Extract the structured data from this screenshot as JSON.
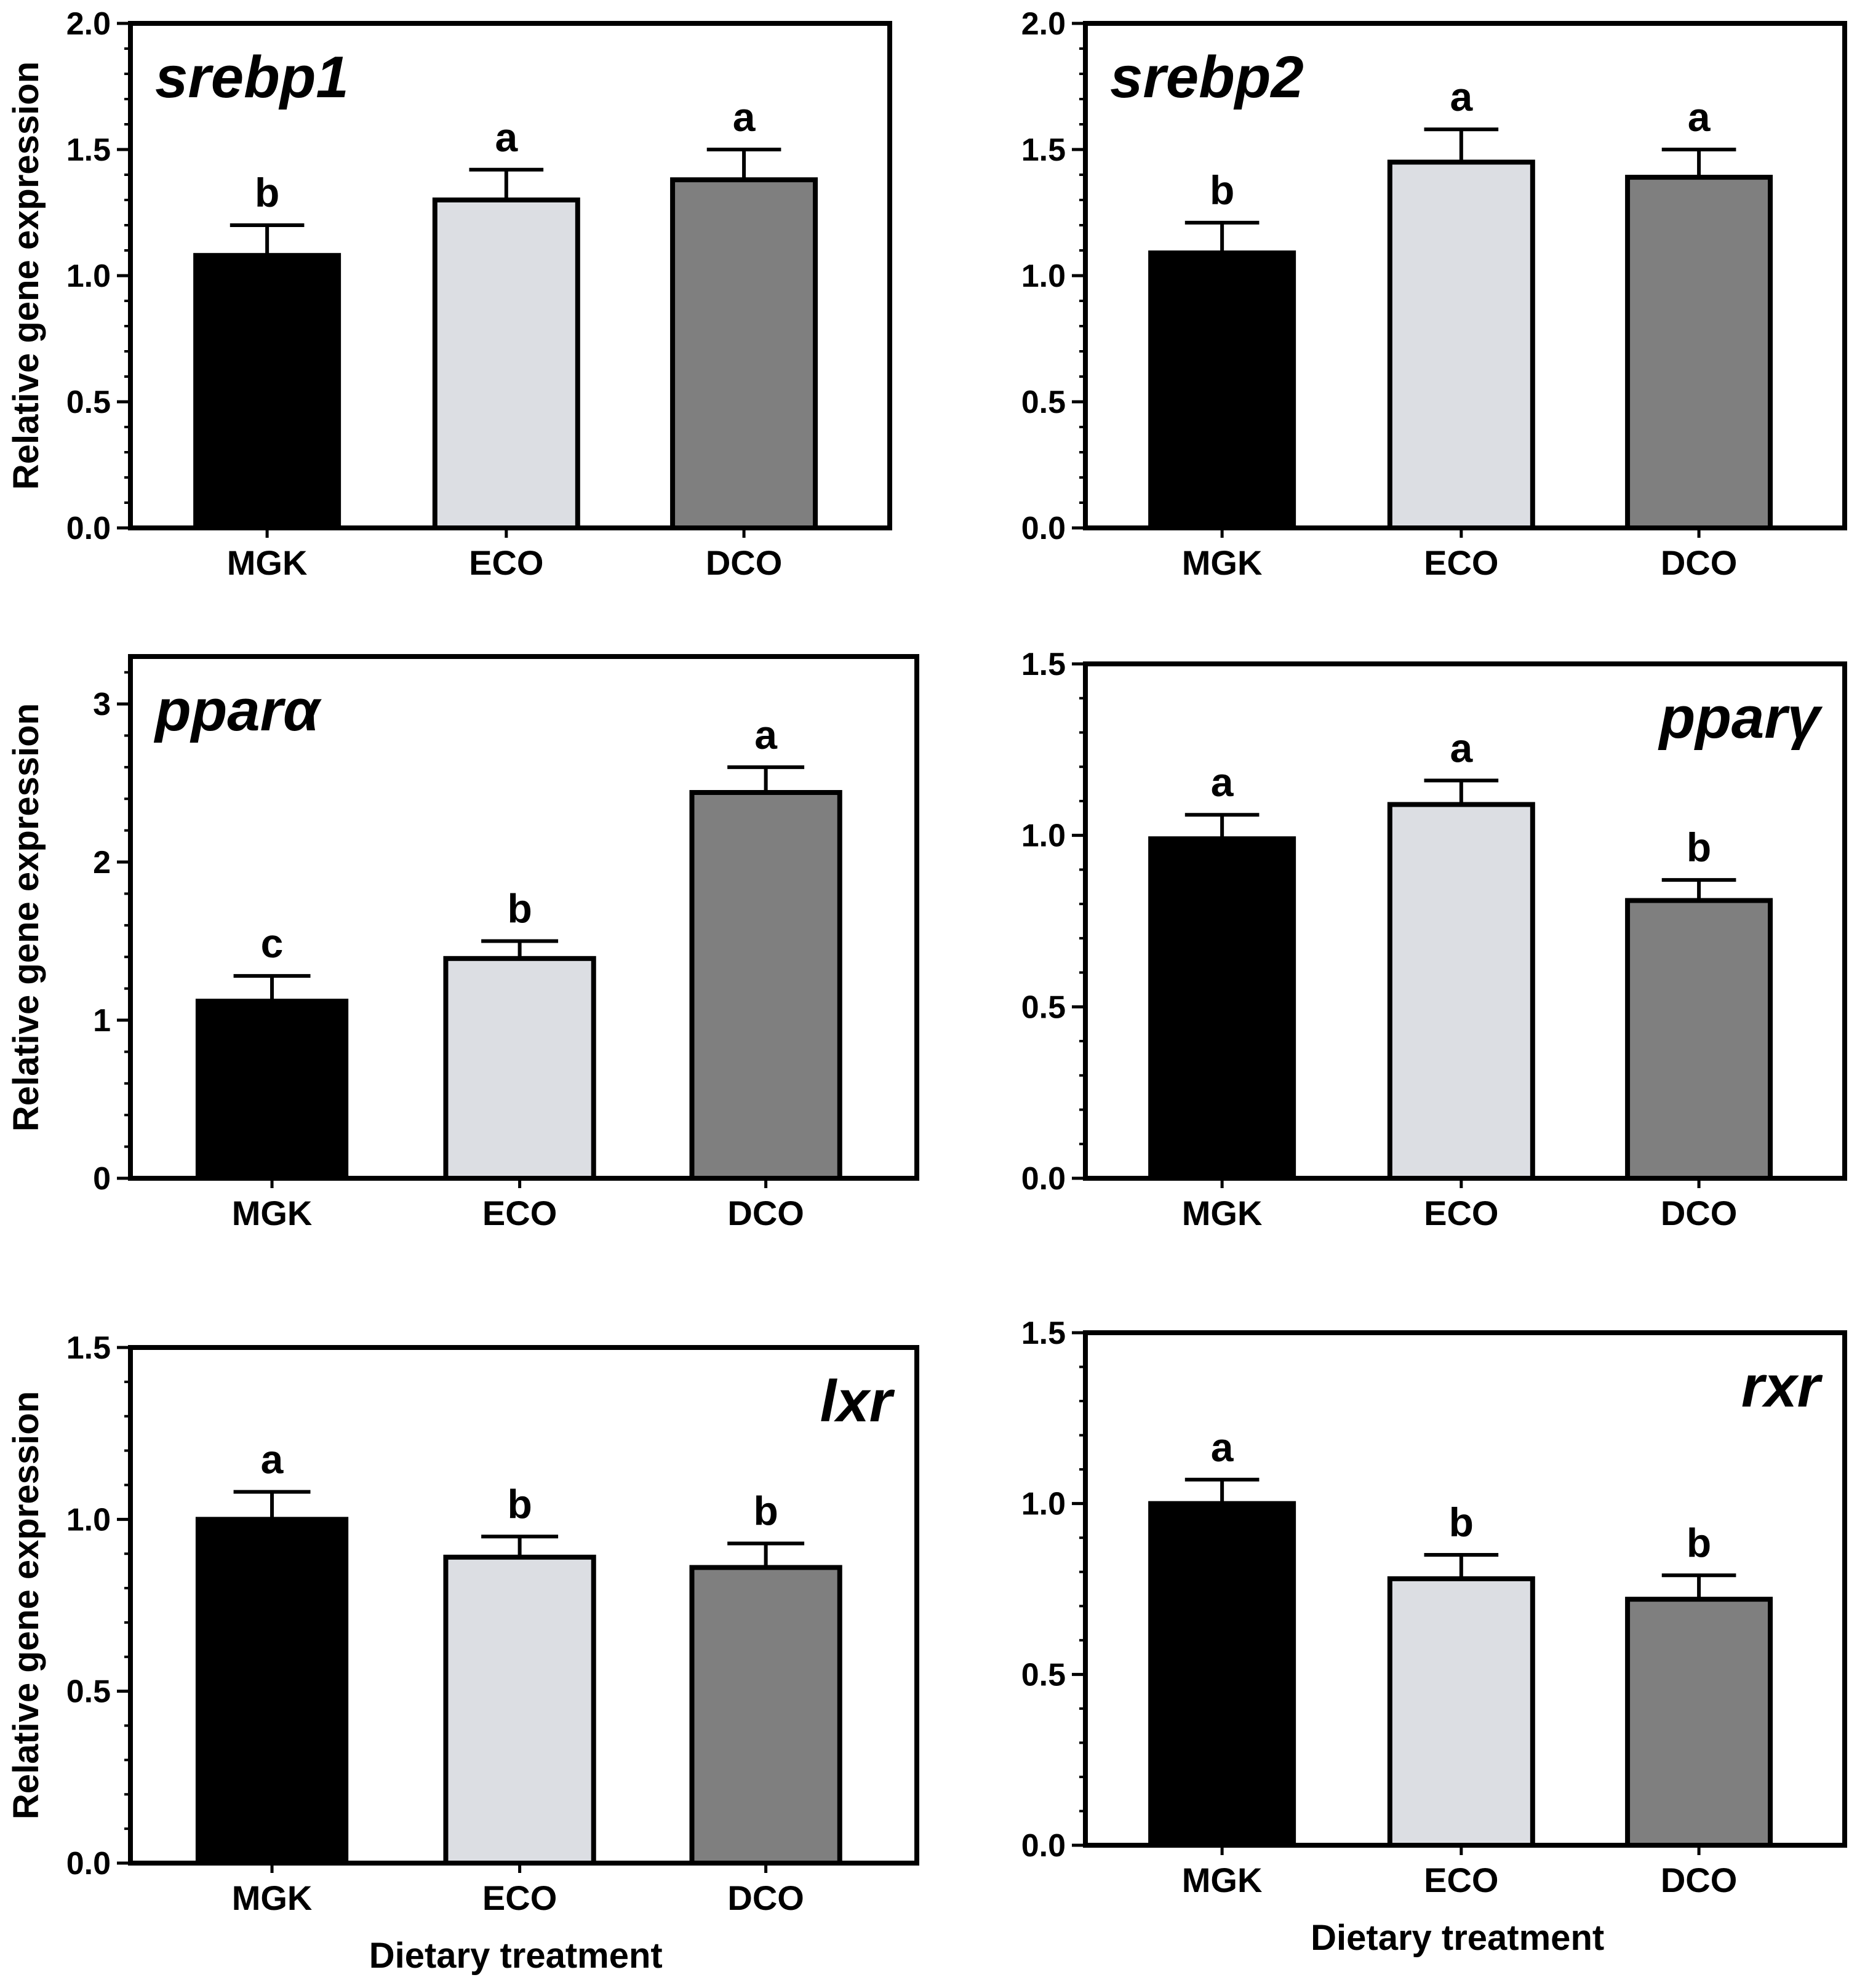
{
  "chart_data": [
    {
      "type": "bar",
      "title": "srebp1",
      "title_position": "top-left",
      "categories": [
        "MGK",
        "ECO",
        "DCO"
      ],
      "values": [
        1.08,
        1.3,
        1.38
      ],
      "errors": [
        0.12,
        0.12,
        0.12
      ],
      "significance": [
        "b",
        "a",
        "a"
      ],
      "colors": [
        "#000000",
        "#dcdee3",
        "#7f7f7f"
      ],
      "ylim": [
        0,
        2.0
      ],
      "yticks": [
        0,
        0.5,
        1.0,
        1.5,
        2.0
      ],
      "ytick_labels": [
        "0.0",
        "0.5",
        "1.0",
        "1.5",
        "2.0"
      ],
      "ylabel": "Relative gene expression",
      "xlabel": ""
    },
    {
      "type": "bar",
      "title": "srebp2",
      "title_position": "top-left",
      "categories": [
        "MGK",
        "ECO",
        "DCO"
      ],
      "values": [
        1.09,
        1.45,
        1.39
      ],
      "errors": [
        0.12,
        0.13,
        0.11
      ],
      "significance": [
        "b",
        "a",
        "a"
      ],
      "colors": [
        "#000000",
        "#dcdee3",
        "#7f7f7f"
      ],
      "ylim": [
        0,
        2.0
      ],
      "yticks": [
        0,
        0.5,
        1.0,
        1.5,
        2.0
      ],
      "ytick_labels": [
        "0.0",
        "0.5",
        "1.0",
        "1.5",
        "2.0"
      ],
      "ylabel": "",
      "xlabel": ""
    },
    {
      "type": "bar",
      "title": "pparα",
      "title_position": "top-left",
      "categories": [
        "MGK",
        "ECO",
        "DCO"
      ],
      "values": [
        1.12,
        1.39,
        2.44
      ],
      "errors": [
        0.16,
        0.11,
        0.16
      ],
      "significance": [
        "c",
        "b",
        "a"
      ],
      "colors": [
        "#000000",
        "#dcdee3",
        "#7f7f7f"
      ],
      "ylim": [
        0,
        3.3
      ],
      "yticks": [
        0,
        1,
        2,
        3
      ],
      "ytick_labels": [
        "0",
        "1",
        "2",
        "3"
      ],
      "ylabel": "Relative gene expression",
      "xlabel": ""
    },
    {
      "type": "bar",
      "title": "pparγ",
      "title_position": "top-right",
      "categories": [
        "MGK",
        "ECO",
        "DCO"
      ],
      "values": [
        0.99,
        1.09,
        0.81
      ],
      "errors": [
        0.07,
        0.07,
        0.06
      ],
      "significance": [
        "a",
        "a",
        "b"
      ],
      "colors": [
        "#000000",
        "#dcdee3",
        "#7f7f7f"
      ],
      "ylim": [
        0,
        1.5
      ],
      "yticks": [
        0,
        0.5,
        1.0,
        1.5
      ],
      "ytick_labels": [
        "0.0",
        "0.5",
        "1.0",
        "1.5"
      ],
      "ylabel": "",
      "xlabel": ""
    },
    {
      "type": "bar",
      "title": "lxr",
      "title_position": "top-right",
      "categories": [
        "MGK",
        "ECO",
        "DCO"
      ],
      "values": [
        1.0,
        0.89,
        0.86
      ],
      "errors": [
        0.08,
        0.06,
        0.07
      ],
      "significance": [
        "a",
        "b",
        "b"
      ],
      "colors": [
        "#000000",
        "#dcdee3",
        "#7f7f7f"
      ],
      "ylim": [
        0,
        1.5
      ],
      "yticks": [
        0,
        0.5,
        1.0,
        1.5
      ],
      "ytick_labels": [
        "0.0",
        "0.5",
        "1.0",
        "1.5"
      ],
      "ylabel": "Relative gene expression",
      "xlabel": "Dietary treatment"
    },
    {
      "type": "bar",
      "title": "rxr",
      "title_position": "top-right",
      "categories": [
        "MGK",
        "ECO",
        "DCO"
      ],
      "values": [
        1.0,
        0.78,
        0.72
      ],
      "errors": [
        0.07,
        0.07,
        0.07
      ],
      "significance": [
        "a",
        "b",
        "b"
      ],
      "colors": [
        "#000000",
        "#dcdee3",
        "#7f7f7f"
      ],
      "ylim": [
        0,
        1.5
      ],
      "yticks": [
        0,
        0.5,
        1.0,
        1.5
      ],
      "ytick_labels": [
        "0.0",
        "0.5",
        "1.0",
        "1.5"
      ],
      "ylabel": "",
      "xlabel": "Dietary treatment"
    }
  ]
}
